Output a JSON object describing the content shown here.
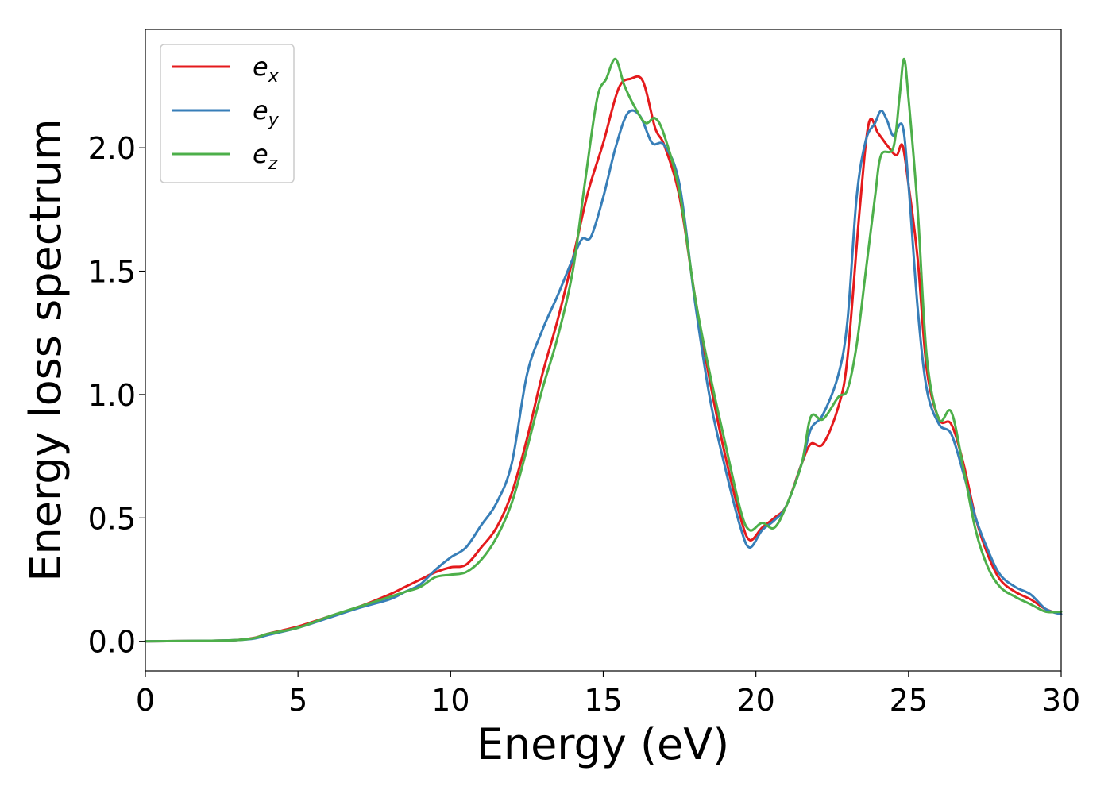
{
  "chart_data": {
    "type": "line",
    "title": "",
    "xlabel": "Energy (eV)",
    "ylabel": "Energy loss spectrum",
    "xlim": [
      0,
      30
    ],
    "ylim": [
      -0.12,
      2.48
    ],
    "xticks": [
      0,
      5,
      10,
      15,
      20,
      25,
      30
    ],
    "xtick_labels": [
      "0",
      "5",
      "10",
      "15",
      "20",
      "25",
      "30"
    ],
    "yticks": [
      0.0,
      0.5,
      1.0,
      1.5,
      2.0
    ],
    "ytick_labels": [
      "0.0",
      "0.5",
      "1.0",
      "1.5",
      "2.0"
    ],
    "grid": false,
    "legend_position": "top-left",
    "series": [
      {
        "name": "e",
        "subscript": "x",
        "color": "#e41a1c",
        "points": [
          [
            0,
            0
          ],
          [
            2,
            0.002
          ],
          [
            3,
            0.005
          ],
          [
            3.6,
            0.015
          ],
          [
            4,
            0.03
          ],
          [
            5,
            0.06
          ],
          [
            6,
            0.1
          ],
          [
            7,
            0.14
          ],
          [
            8,
            0.19
          ],
          [
            8.5,
            0.22
          ],
          [
            9,
            0.25
          ],
          [
            9.5,
            0.28
          ],
          [
            10,
            0.3
          ],
          [
            10.5,
            0.31
          ],
          [
            11,
            0.38
          ],
          [
            11.5,
            0.46
          ],
          [
            12,
            0.6
          ],
          [
            12.5,
            0.82
          ],
          [
            13,
            1.08
          ],
          [
            13.5,
            1.3
          ],
          [
            14,
            1.55
          ],
          [
            14.5,
            1.82
          ],
          [
            15,
            2.02
          ],
          [
            15.5,
            2.24
          ],
          [
            15.9,
            2.28
          ],
          [
            16.3,
            2.27
          ],
          [
            16.7,
            2.08
          ],
          [
            17,
            2.01
          ],
          [
            17.5,
            1.8
          ],
          [
            18,
            1.4
          ],
          [
            18.5,
            1.05
          ],
          [
            19,
            0.75
          ],
          [
            19.5,
            0.5
          ],
          [
            19.8,
            0.41
          ],
          [
            20.2,
            0.46
          ],
          [
            20.6,
            0.5
          ],
          [
            21,
            0.55
          ],
          [
            21.5,
            0.72
          ],
          [
            21.8,
            0.8
          ],
          [
            22.2,
            0.8
          ],
          [
            22.7,
            0.95
          ],
          [
            23,
            1.15
          ],
          [
            23.4,
            1.75
          ],
          [
            23.7,
            2.1
          ],
          [
            24,
            2.06
          ],
          [
            24.3,
            2.01
          ],
          [
            24.6,
            1.97
          ],
          [
            24.8,
            2.01
          ],
          [
            25,
            1.85
          ],
          [
            25.3,
            1.55
          ],
          [
            25.6,
            1.1
          ],
          [
            26,
            0.9
          ],
          [
            26.4,
            0.88
          ],
          [
            26.8,
            0.72
          ],
          [
            27.2,
            0.5
          ],
          [
            27.6,
            0.35
          ],
          [
            28,
            0.25
          ],
          [
            28.5,
            0.2
          ],
          [
            29,
            0.17
          ],
          [
            29.5,
            0.13
          ],
          [
            30,
            0.11
          ]
        ]
      },
      {
        "name": "e",
        "subscript": "y",
        "color": "#377eb8",
        "points": [
          [
            0,
            0
          ],
          [
            2,
            0.002
          ],
          [
            3,
            0.005
          ],
          [
            3.6,
            0.012
          ],
          [
            4,
            0.025
          ],
          [
            5,
            0.055
          ],
          [
            6,
            0.095
          ],
          [
            7,
            0.135
          ],
          [
            8,
            0.17
          ],
          [
            8.5,
            0.2
          ],
          [
            9,
            0.23
          ],
          [
            9.5,
            0.29
          ],
          [
            10,
            0.34
          ],
          [
            10.5,
            0.38
          ],
          [
            11,
            0.47
          ],
          [
            11.5,
            0.56
          ],
          [
            12,
            0.72
          ],
          [
            12.5,
            1.08
          ],
          [
            13,
            1.26
          ],
          [
            13.5,
            1.4
          ],
          [
            14,
            1.55
          ],
          [
            14.3,
            1.63
          ],
          [
            14.6,
            1.64
          ],
          [
            15,
            1.8
          ],
          [
            15.4,
            2.0
          ],
          [
            15.8,
            2.14
          ],
          [
            16.2,
            2.13
          ],
          [
            16.6,
            2.02
          ],
          [
            17,
            2.01
          ],
          [
            17.5,
            1.85
          ],
          [
            18,
            1.38
          ],
          [
            18.5,
            0.98
          ],
          [
            19,
            0.7
          ],
          [
            19.5,
            0.46
          ],
          [
            19.8,
            0.38
          ],
          [
            20.2,
            0.45
          ],
          [
            20.6,
            0.49
          ],
          [
            21,
            0.55
          ],
          [
            21.5,
            0.72
          ],
          [
            21.8,
            0.86
          ],
          [
            22.2,
            0.92
          ],
          [
            22.7,
            1.08
          ],
          [
            23,
            1.3
          ],
          [
            23.3,
            1.8
          ],
          [
            23.6,
            2.03
          ],
          [
            23.9,
            2.1
          ],
          [
            24.1,
            2.15
          ],
          [
            24.3,
            2.11
          ],
          [
            24.5,
            2.05
          ],
          [
            24.8,
            2.09
          ],
          [
            25,
            1.85
          ],
          [
            25.3,
            1.35
          ],
          [
            25.6,
            1.02
          ],
          [
            26,
            0.88
          ],
          [
            26.4,
            0.84
          ],
          [
            26.8,
            0.68
          ],
          [
            27.2,
            0.5
          ],
          [
            27.6,
            0.37
          ],
          [
            28,
            0.27
          ],
          [
            28.5,
            0.22
          ],
          [
            29,
            0.19
          ],
          [
            29.5,
            0.13
          ],
          [
            30,
            0.11
          ]
        ]
      },
      {
        "name": "e",
        "subscript": "z",
        "color": "#4daf4a",
        "points": [
          [
            0,
            0
          ],
          [
            2,
            0.002
          ],
          [
            3,
            0.005
          ],
          [
            3.6,
            0.014
          ],
          [
            4,
            0.03
          ],
          [
            5,
            0.055
          ],
          [
            6,
            0.1
          ],
          [
            7,
            0.14
          ],
          [
            8,
            0.18
          ],
          [
            8.5,
            0.2
          ],
          [
            9,
            0.22
          ],
          [
            9.5,
            0.26
          ],
          [
            10,
            0.27
          ],
          [
            10.5,
            0.28
          ],
          [
            11,
            0.33
          ],
          [
            11.5,
            0.42
          ],
          [
            12,
            0.56
          ],
          [
            12.5,
            0.78
          ],
          [
            13,
            1.02
          ],
          [
            13.5,
            1.23
          ],
          [
            14,
            1.5
          ],
          [
            14.4,
            1.86
          ],
          [
            14.8,
            2.2
          ],
          [
            15.1,
            2.28
          ],
          [
            15.4,
            2.36
          ],
          [
            15.7,
            2.25
          ],
          [
            16.1,
            2.15
          ],
          [
            16.4,
            2.1
          ],
          [
            16.7,
            2.12
          ],
          [
            17,
            2.05
          ],
          [
            17.5,
            1.82
          ],
          [
            18,
            1.4
          ],
          [
            18.5,
            1.08
          ],
          [
            19,
            0.8
          ],
          [
            19.5,
            0.53
          ],
          [
            19.8,
            0.45
          ],
          [
            20.2,
            0.48
          ],
          [
            20.6,
            0.46
          ],
          [
            21,
            0.55
          ],
          [
            21.5,
            0.72
          ],
          [
            21.8,
            0.91
          ],
          [
            22.2,
            0.9
          ],
          [
            22.7,
            0.99
          ],
          [
            23,
            1.02
          ],
          [
            23.3,
            1.2
          ],
          [
            23.6,
            1.5
          ],
          [
            23.9,
            1.8
          ],
          [
            24.1,
            1.97
          ],
          [
            24.5,
            2.0
          ],
          [
            24.7,
            2.2
          ],
          [
            24.85,
            2.36
          ],
          [
            25,
            2.2
          ],
          [
            25.3,
            1.75
          ],
          [
            25.6,
            1.15
          ],
          [
            26,
            0.9
          ],
          [
            26.4,
            0.93
          ],
          [
            26.8,
            0.7
          ],
          [
            27.2,
            0.45
          ],
          [
            27.6,
            0.3
          ],
          [
            28,
            0.22
          ],
          [
            28.5,
            0.18
          ],
          [
            29,
            0.15
          ],
          [
            29.5,
            0.12
          ],
          [
            30,
            0.12
          ]
        ]
      }
    ]
  }
}
